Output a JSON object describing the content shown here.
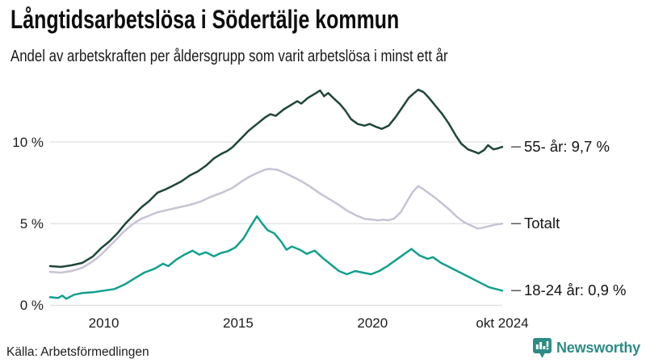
{
  "header": {
    "title": "Långtidsarbetslösa i Södertälje kommun",
    "subtitle": "Andel av arbetskraften per åldersgrupp som varit arbetslösa i minst ett år"
  },
  "chart_data": {
    "type": "line",
    "x_unit": "year",
    "xlim": [
      2008,
      2024.83
    ],
    "ylim": [
      0,
      14
    ],
    "grid": "horizontal",
    "grid_color": "#e0e0e4",
    "tick_color": "#4d4d4d",
    "legend_position": "right-end-labels",
    "yticks": [
      {
        "value": 0,
        "label": "0 %"
      },
      {
        "value": 5,
        "label": "5 %"
      },
      {
        "value": 10,
        "label": "10 %"
      }
    ],
    "xticks": [
      {
        "value": 2010,
        "label": "2010"
      },
      {
        "value": 2015,
        "label": "2015"
      },
      {
        "value": 2020,
        "label": "2020"
      },
      {
        "value": 2024.83,
        "label": "okt 2024"
      }
    ],
    "series": [
      {
        "name": "55- år",
        "label": "55- år: 9,7 %",
        "last_value": 9.7,
        "color": "#1e463a",
        "points": [
          [
            2008,
            2.4
          ],
          [
            2008.4,
            2.35
          ],
          [
            2008.8,
            2.45
          ],
          [
            2009.2,
            2.6
          ],
          [
            2009.6,
            3.0
          ],
          [
            2009.9,
            3.5
          ],
          [
            2010.2,
            3.9
          ],
          [
            2010.5,
            4.4
          ],
          [
            2010.8,
            5.0
          ],
          [
            2011.1,
            5.5
          ],
          [
            2011.4,
            6.0
          ],
          [
            2011.7,
            6.4
          ],
          [
            2012,
            6.9
          ],
          [
            2012.3,
            7.1
          ],
          [
            2012.6,
            7.35
          ],
          [
            2012.9,
            7.6
          ],
          [
            2013.2,
            7.95
          ],
          [
            2013.5,
            8.2
          ],
          [
            2013.8,
            8.55
          ],
          [
            2014.1,
            9.0
          ],
          [
            2014.4,
            9.3
          ],
          [
            2014.6,
            9.45
          ],
          [
            2014.8,
            9.7
          ],
          [
            2015.1,
            10.2
          ],
          [
            2015.4,
            10.7
          ],
          [
            2015.7,
            11.1
          ],
          [
            2016,
            11.5
          ],
          [
            2016.2,
            11.7
          ],
          [
            2016.4,
            11.6
          ],
          [
            2016.7,
            12.0
          ],
          [
            2017,
            12.3
          ],
          [
            2017.2,
            12.5
          ],
          [
            2017.35,
            12.35
          ],
          [
            2017.6,
            12.7
          ],
          [
            2017.9,
            13.0
          ],
          [
            2018.05,
            13.15
          ],
          [
            2018.2,
            12.8
          ],
          [
            2018.35,
            13.0
          ],
          [
            2018.6,
            12.6
          ],
          [
            2018.8,
            12.3
          ],
          [
            2019,
            11.9
          ],
          [
            2019.2,
            11.4
          ],
          [
            2019.45,
            11.1
          ],
          [
            2019.7,
            11.0
          ],
          [
            2019.9,
            11.1
          ],
          [
            2020.1,
            10.95
          ],
          [
            2020.35,
            10.8
          ],
          [
            2020.6,
            11.0
          ],
          [
            2020.85,
            11.5
          ],
          [
            2021.1,
            12.1
          ],
          [
            2021.35,
            12.7
          ],
          [
            2021.55,
            13.0
          ],
          [
            2021.7,
            13.2
          ],
          [
            2021.9,
            13.05
          ],
          [
            2022.1,
            12.7
          ],
          [
            2022.35,
            12.2
          ],
          [
            2022.6,
            11.7
          ],
          [
            2022.85,
            11.1
          ],
          [
            2023.1,
            10.4
          ],
          [
            2023.3,
            9.9
          ],
          [
            2023.55,
            9.55
          ],
          [
            2023.8,
            9.4
          ],
          [
            2023.95,
            9.3
          ],
          [
            2024.15,
            9.5
          ],
          [
            2024.3,
            9.8
          ],
          [
            2024.5,
            9.55
          ],
          [
            2024.65,
            9.6
          ],
          [
            2024.83,
            9.7
          ]
        ]
      },
      {
        "name": "Totalt",
        "label": "Totalt",
        "last_value": 5.0,
        "color": "#c6c3d3",
        "points": [
          [
            2008,
            2.05
          ],
          [
            2008.4,
            2.0
          ],
          [
            2008.8,
            2.1
          ],
          [
            2009.2,
            2.3
          ],
          [
            2009.6,
            2.7
          ],
          [
            2009.9,
            3.1
          ],
          [
            2010.2,
            3.6
          ],
          [
            2010.5,
            4.1
          ],
          [
            2010.8,
            4.6
          ],
          [
            2011.1,
            5.0
          ],
          [
            2011.4,
            5.3
          ],
          [
            2011.7,
            5.5
          ],
          [
            2012,
            5.7
          ],
          [
            2012.4,
            5.85
          ],
          [
            2012.8,
            6.0
          ],
          [
            2013.2,
            6.15
          ],
          [
            2013.6,
            6.35
          ],
          [
            2014,
            6.65
          ],
          [
            2014.4,
            6.9
          ],
          [
            2014.8,
            7.2
          ],
          [
            2015.1,
            7.55
          ],
          [
            2015.4,
            7.85
          ],
          [
            2015.7,
            8.1
          ],
          [
            2016,
            8.3
          ],
          [
            2016.15,
            8.35
          ],
          [
            2016.45,
            8.3
          ],
          [
            2016.75,
            8.1
          ],
          [
            2017.05,
            7.85
          ],
          [
            2017.35,
            7.6
          ],
          [
            2017.65,
            7.3
          ],
          [
            2018,
            6.9
          ],
          [
            2018.35,
            6.55
          ],
          [
            2018.7,
            6.2
          ],
          [
            2019.05,
            5.8
          ],
          [
            2019.4,
            5.5
          ],
          [
            2019.7,
            5.3
          ],
          [
            2020,
            5.25
          ],
          [
            2020.2,
            5.2
          ],
          [
            2020.4,
            5.25
          ],
          [
            2020.55,
            5.2
          ],
          [
            2020.8,
            5.3
          ],
          [
            2021.05,
            5.7
          ],
          [
            2021.3,
            6.4
          ],
          [
            2021.5,
            6.95
          ],
          [
            2021.7,
            7.3
          ],
          [
            2021.9,
            7.1
          ],
          [
            2022.15,
            6.8
          ],
          [
            2022.4,
            6.5
          ],
          [
            2022.65,
            6.15
          ],
          [
            2022.9,
            5.8
          ],
          [
            2023.15,
            5.4
          ],
          [
            2023.4,
            5.1
          ],
          [
            2023.65,
            4.9
          ],
          [
            2023.9,
            4.7
          ],
          [
            2024.1,
            4.75
          ],
          [
            2024.35,
            4.85
          ],
          [
            2024.6,
            4.95
          ],
          [
            2024.83,
            5.0
          ]
        ]
      },
      {
        "name": "18-24 år",
        "label": "18-24 år: 0,9 %",
        "last_value": 0.9,
        "color": "#10a08e",
        "points": [
          [
            2008,
            0.5
          ],
          [
            2008.3,
            0.45
          ],
          [
            2008.45,
            0.6
          ],
          [
            2008.6,
            0.4
          ],
          [
            2008.9,
            0.65
          ],
          [
            2009.2,
            0.75
          ],
          [
            2009.6,
            0.8
          ],
          [
            2010,
            0.9
          ],
          [
            2010.4,
            1.0
          ],
          [
            2010.8,
            1.3
          ],
          [
            2011.1,
            1.6
          ],
          [
            2011.5,
            2.0
          ],
          [
            2011.9,
            2.25
          ],
          [
            2012.2,
            2.55
          ],
          [
            2012.4,
            2.4
          ],
          [
            2012.7,
            2.8
          ],
          [
            2013,
            3.1
          ],
          [
            2013.3,
            3.35
          ],
          [
            2013.55,
            3.1
          ],
          [
            2013.8,
            3.25
          ],
          [
            2014.1,
            3.0
          ],
          [
            2014.35,
            3.2
          ],
          [
            2014.6,
            3.3
          ],
          [
            2014.9,
            3.55
          ],
          [
            2015.2,
            4.1
          ],
          [
            2015.45,
            4.8
          ],
          [
            2015.7,
            5.45
          ],
          [
            2015.9,
            5.0
          ],
          [
            2016.1,
            4.6
          ],
          [
            2016.35,
            4.4
          ],
          [
            2016.6,
            3.9
          ],
          [
            2016.8,
            3.4
          ],
          [
            2017,
            3.6
          ],
          [
            2017.3,
            3.4
          ],
          [
            2017.55,
            3.15
          ],
          [
            2017.85,
            3.35
          ],
          [
            2018.15,
            2.9
          ],
          [
            2018.45,
            2.5
          ],
          [
            2018.75,
            2.1
          ],
          [
            2019.05,
            1.9
          ],
          [
            2019.35,
            2.1
          ],
          [
            2019.65,
            2.0
          ],
          [
            2019.95,
            1.9
          ],
          [
            2020.25,
            2.1
          ],
          [
            2020.55,
            2.4
          ],
          [
            2020.85,
            2.75
          ],
          [
            2021.15,
            3.1
          ],
          [
            2021.45,
            3.45
          ],
          [
            2021.75,
            3.05
          ],
          [
            2022.05,
            2.85
          ],
          [
            2022.25,
            2.95
          ],
          [
            2022.55,
            2.6
          ],
          [
            2022.85,
            2.35
          ],
          [
            2023.15,
            2.1
          ],
          [
            2023.45,
            1.85
          ],
          [
            2023.75,
            1.6
          ],
          [
            2024.05,
            1.35
          ],
          [
            2024.35,
            1.1
          ],
          [
            2024.6,
            1.0
          ],
          [
            2024.83,
            0.9
          ]
        ]
      }
    ]
  },
  "footer": {
    "source": "Källa: Arbetsförmedlingen",
    "brand": "Newsworthy"
  },
  "colors": {
    "brand": "#2e8c85",
    "background": "#ffffff",
    "text": "#1c1c1c"
  }
}
